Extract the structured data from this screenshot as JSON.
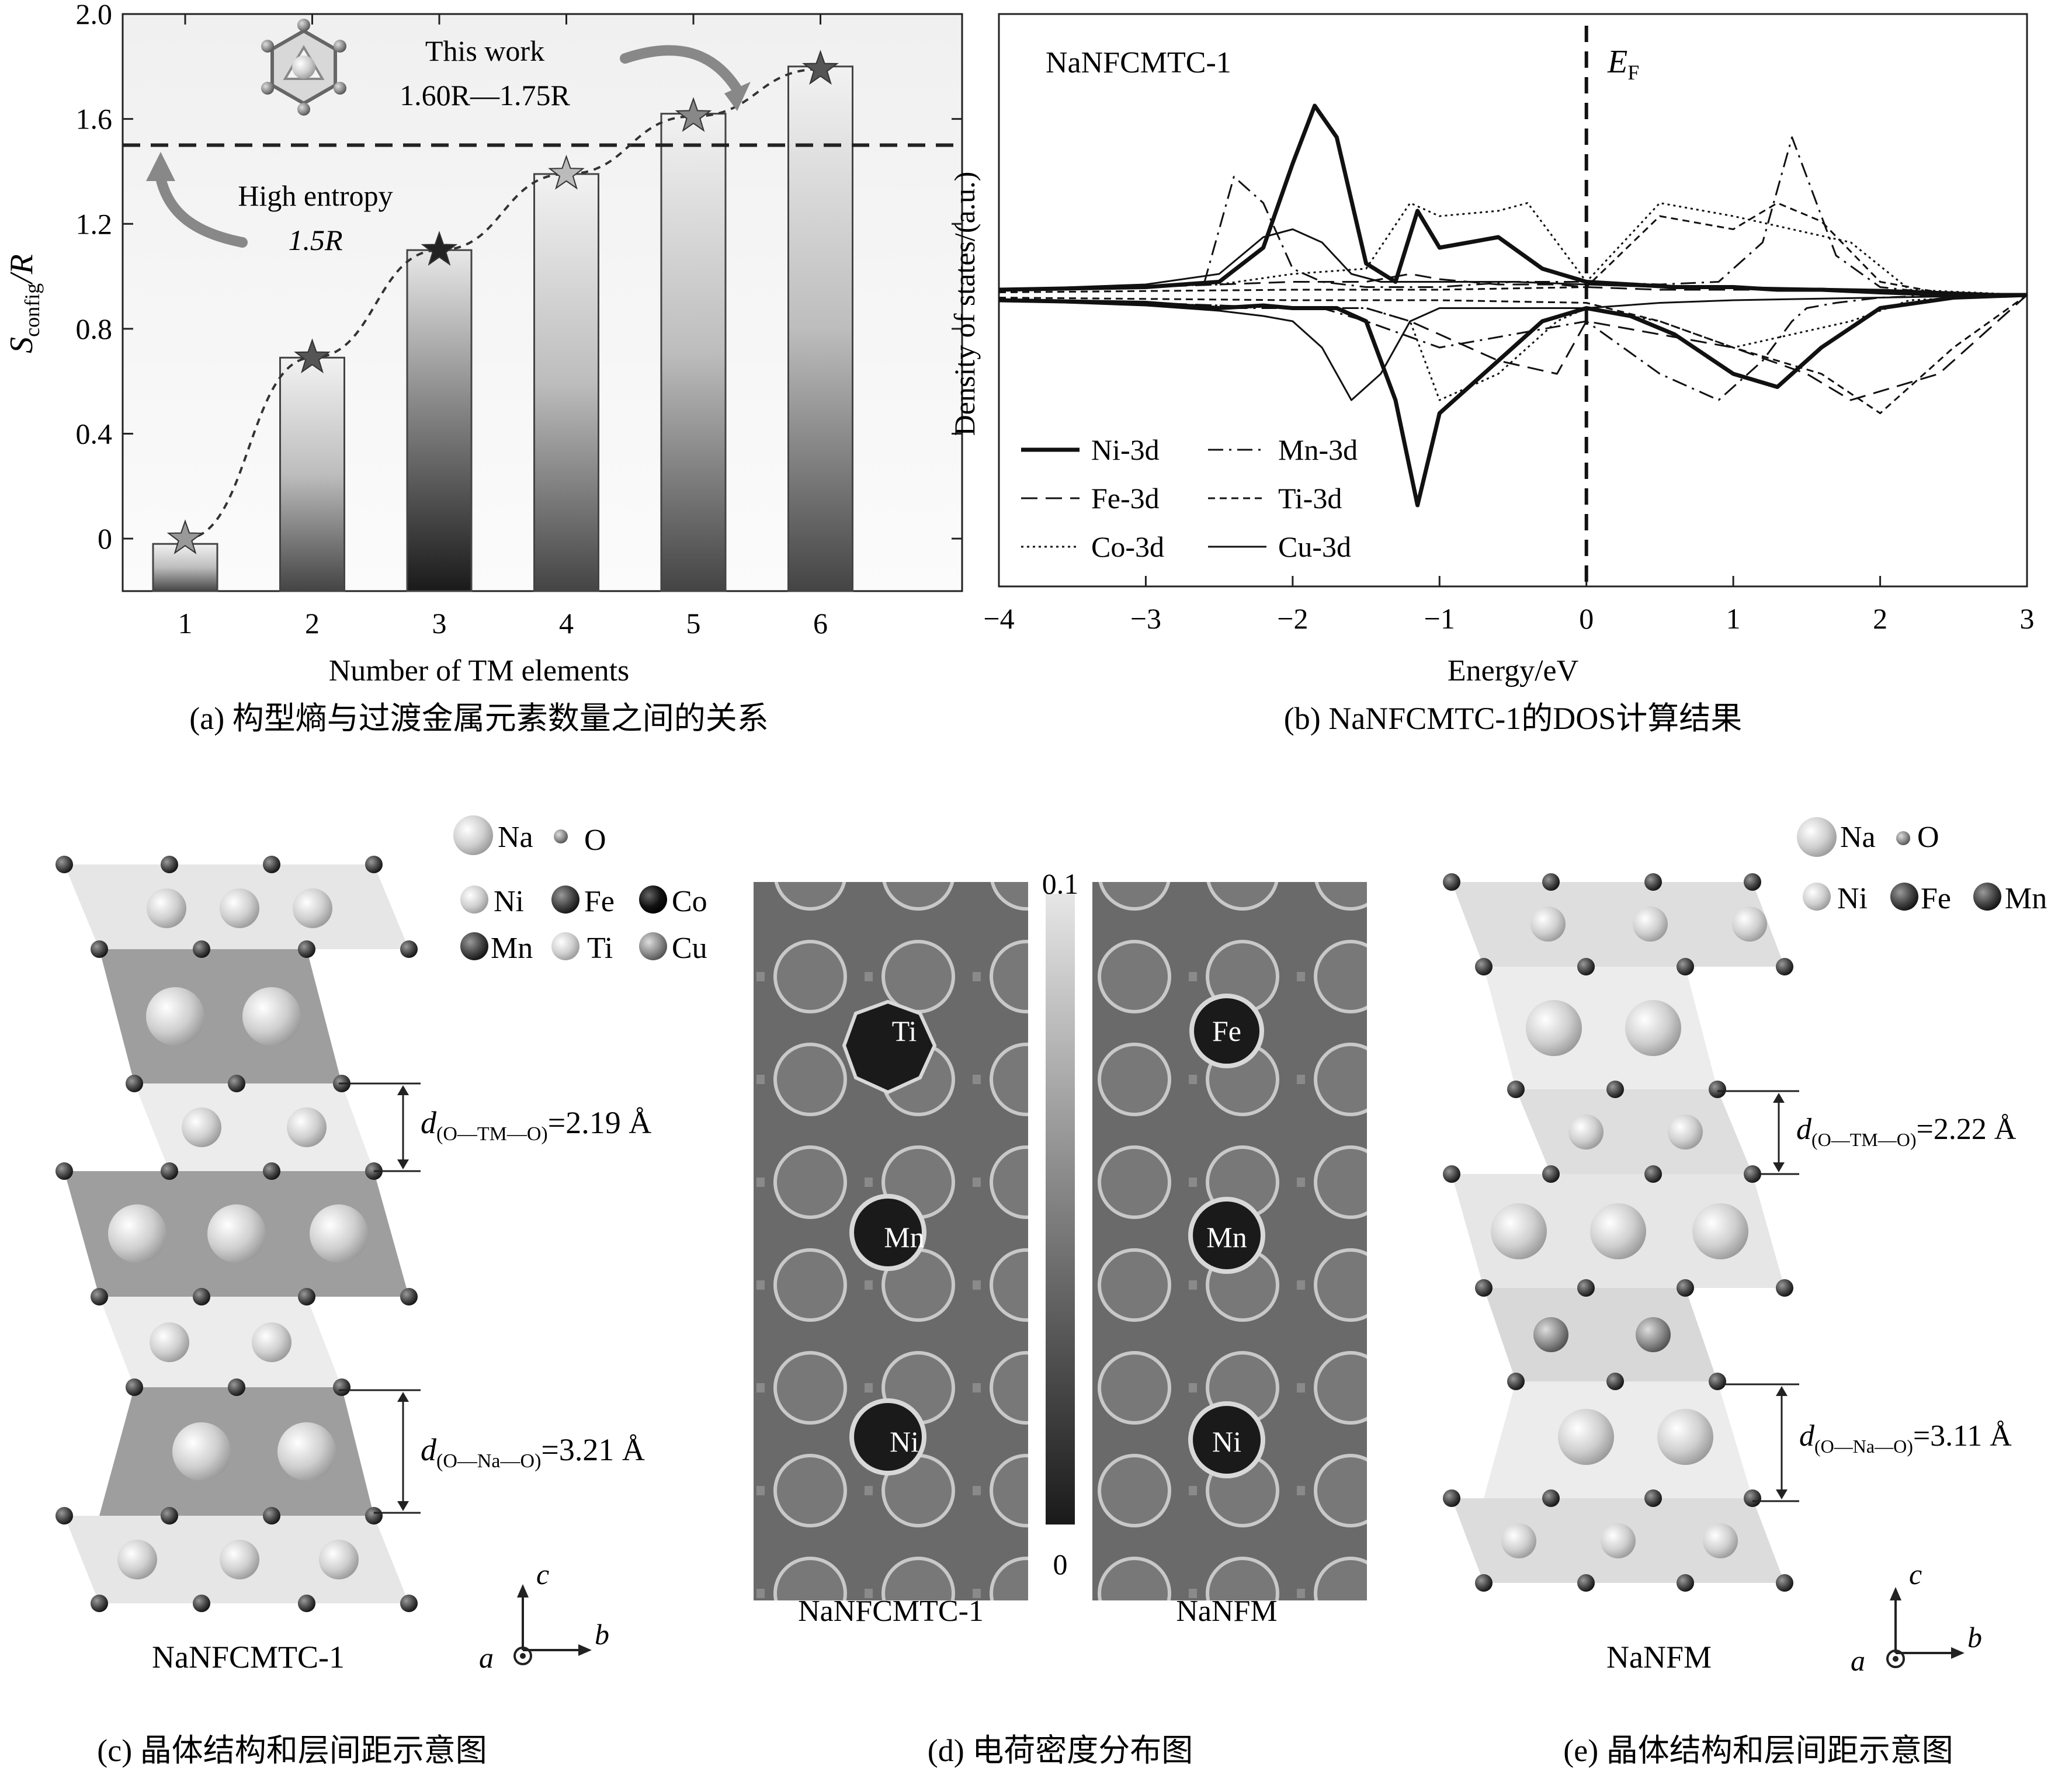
{
  "panel_a": {
    "caption": "(a) 构型熵与过渡金属元素数量之间的关系",
    "ylabel_main": "S",
    "ylabel_sub": "config",
    "ylabel_tail": "/R",
    "xlabel": "Number of TM elements",
    "this_work": "This work",
    "range_text": "1.60R—1.75R",
    "high_entropy": "High entropy",
    "he_value": "1.5R",
    "y_ticks": [
      "0",
      "0.4",
      "0.8",
      "1.2",
      "1.6",
      "2.0"
    ],
    "x_ticks": [
      "1",
      "2",
      "3",
      "4",
      "5",
      "6"
    ]
  },
  "panel_b": {
    "caption": "(b) NaNFCMTC-1的DOS计算结果",
    "sample": "NaNFCMTC-1",
    "ef_label": "E",
    "ef_sub": "F",
    "xlabel": "Energy/eV",
    "ylabel": "Density of states/(a.u.)",
    "x_ticks": [
      "−4",
      "−3",
      "−2",
      "−1",
      "0",
      "1",
      "2",
      "3"
    ],
    "legend": [
      "Ni-3d",
      "Mn-3d",
      "Fe-3d",
      "Ti-3d",
      "Co-3d",
      "Cu-3d"
    ]
  },
  "panel_c": {
    "caption": "(c) 晶体结构和层间距示意图",
    "name": "NaNFCMTC-1",
    "legend": [
      "Na",
      "O",
      "Ni",
      "Fe",
      "Co",
      "Mn",
      "Ti",
      "Cu"
    ],
    "d_tm_label": "d",
    "d_tm_sub": "(O—TM—O)",
    "d_tm_value": "=2.19 Å",
    "d_na_label": "d",
    "d_na_sub": "(O—Na—O)",
    "d_na_value": "=3.21 Å",
    "axis_c": "c",
    "axis_a": "a",
    "axis_b": "b"
  },
  "panel_d": {
    "caption": "(d) 电荷密度分布图",
    "left_name": "NaNFCMTC-1",
    "right_name": "NaNFM",
    "scale_max": "0.1",
    "scale_min": "0",
    "left_atoms": [
      "Ti",
      "Mn",
      "Ni"
    ],
    "right_atoms": [
      "Fe",
      "Mn",
      "Ni"
    ]
  },
  "panel_e": {
    "caption": "(e) 晶体结构和层间距示意图",
    "name": "NaNFM",
    "legend": [
      "Na",
      "O",
      "Ni",
      "Fe",
      "Mn"
    ],
    "d_tm_label": "d",
    "d_tm_sub": "(O—TM—O)",
    "d_tm_value": "=2.22 Å",
    "d_na_label": "d",
    "d_na_sub": "(O—Na—O)",
    "d_na_value": "=3.11 Å",
    "axis_c": "c",
    "axis_a": "a",
    "axis_b": "b"
  },
  "chart_data": [
    {
      "type": "bar",
      "title": "",
      "xlabel": "Number of TM elements",
      "ylabel": "S_config/R",
      "categories": [
        "1",
        "2",
        "3",
        "4",
        "5",
        "6"
      ],
      "values": [
        -0.02,
        0.69,
        1.1,
        1.39,
        1.62,
        1.8
      ],
      "ylim": [
        -0.2,
        2.0
      ],
      "reference_line": 1.5,
      "star_values": [
        0.0,
        0.69,
        1.1,
        1.39,
        1.61,
        1.79
      ]
    },
    {
      "type": "line",
      "title": "NaNFCMTC-1",
      "xlabel": "Energy/eV",
      "ylabel": "Density of states/(a.u.)",
      "xlim": [
        -4,
        3
      ],
      "ylim": [
        -1.0,
        1.0
      ],
      "fermi_level": 0,
      "series": [
        {
          "name": "Ni-3d",
          "style": "thick",
          "x": [
            -4,
            -3,
            -2.5,
            -2.2,
            -2.0,
            -1.85,
            -1.7,
            -1.5,
            -1.3,
            -1.15,
            -1.0,
            -0.6,
            -0.3,
            0,
            0.3,
            0.6,
            1.0,
            1.3,
            1.6,
            2.0,
            2.5,
            3
          ],
          "up": [
            0.02,
            0.03,
            0.05,
            0.18,
            0.5,
            0.72,
            0.6,
            0.12,
            0.05,
            0.32,
            0.18,
            0.22,
            0.1,
            0.05,
            0.04,
            0.03,
            0.03,
            0.02,
            0.02,
            0.01,
            0.0,
            0.0
          ],
          "down": [
            -0.02,
            -0.03,
            -0.05,
            -0.04,
            -0.05,
            -0.05,
            -0.05,
            -0.1,
            -0.4,
            -0.8,
            -0.45,
            -0.25,
            -0.1,
            -0.05,
            -0.08,
            -0.15,
            -0.3,
            -0.35,
            -0.2,
            -0.05,
            -0.01,
            0.0
          ]
        },
        {
          "name": "Mn-3d",
          "style": "dash-dot",
          "x": [
            -4,
            -3,
            -2.6,
            -2.4,
            -2.2,
            -2.0,
            -1.8,
            -1.5,
            -1.0,
            -0.5,
            0,
            0.5,
            0.9,
            1.2,
            1.4,
            1.5,
            1.7,
            2.0,
            2.5,
            3
          ],
          "up": [
            0.02,
            0.03,
            0.05,
            0.45,
            0.35,
            0.1,
            0.05,
            0.03,
            0.03,
            0.05,
            0.05,
            0.04,
            0.05,
            0.2,
            0.6,
            0.45,
            0.15,
            0.03,
            0.0,
            0.0
          ],
          "down": [
            -0.02,
            -0.03,
            -0.05,
            -0.05,
            -0.05,
            -0.05,
            -0.05,
            -0.1,
            -0.2,
            -0.15,
            -0.1,
            -0.3,
            -0.4,
            -0.25,
            -0.1,
            -0.05,
            -0.03,
            -0.01,
            0.0,
            0.0
          ]
        },
        {
          "name": "Fe-3d",
          "style": "long-dash",
          "x": [
            -4,
            -3,
            -2.5,
            -2.0,
            -1.5,
            -1.2,
            -1.0,
            -0.6,
            -0.2,
            0,
            0.5,
            1.0,
            1.5,
            1.8,
            2.1,
            2.4,
            2.8,
            3
          ],
          "up": [
            0.02,
            0.03,
            0.04,
            0.05,
            0.05,
            0.08,
            0.06,
            0.04,
            0.04,
            0.03,
            0.02,
            0.02,
            0.02,
            0.02,
            0.01,
            0.0,
            0.0,
            0.0
          ],
          "down": [
            -0.02,
            -0.03,
            -0.04,
            -0.05,
            -0.05,
            -0.1,
            -0.15,
            -0.25,
            -0.3,
            -0.1,
            -0.15,
            -0.2,
            -0.3,
            -0.4,
            -0.35,
            -0.3,
            -0.1,
            0.0
          ]
        },
        {
          "name": "Ti-3d",
          "style": "dash",
          "x": [
            -4,
            -2,
            -1,
            0,
            0.5,
            1.0,
            1.3,
            1.6,
            2.0,
            2.5,
            3
          ],
          "up": [
            0.01,
            0.02,
            0.02,
            0.03,
            0.3,
            0.25,
            0.35,
            0.28,
            0.05,
            0.0,
            0.0
          ],
          "down": [
            -0.01,
            -0.02,
            -0.02,
            -0.03,
            -0.1,
            -0.2,
            -0.25,
            -0.3,
            -0.45,
            -0.2,
            0.0
          ]
        },
        {
          "name": "Co-3d",
          "style": "dotted",
          "x": [
            -4,
            -2.5,
            -2.0,
            -1.5,
            -1.2,
            -1.0,
            -0.6,
            -0.4,
            -0.2,
            0,
            0.5,
            1.0,
            1.4,
            1.8,
            2.2,
            3
          ],
          "up": [
            0.02,
            0.04,
            0.08,
            0.1,
            0.35,
            0.3,
            0.32,
            0.35,
            0.2,
            0.05,
            0.35,
            0.3,
            0.25,
            0.2,
            0.02,
            0.0
          ],
          "down": [
            -0.02,
            -0.04,
            -0.05,
            -0.05,
            -0.1,
            -0.4,
            -0.3,
            -0.2,
            -0.1,
            -0.05,
            -0.1,
            -0.2,
            -0.15,
            -0.1,
            -0.02,
            0.0
          ]
        },
        {
          "name": "Cu-3d",
          "style": "thin",
          "x": [
            -4,
            -3,
            -2.5,
            -2.2,
            -2.0,
            -1.8,
            -1.6,
            -1.4,
            -1.2,
            -1.0,
            -0.5,
            0,
            0.5,
            1.0,
            2.0,
            3
          ],
          "up": [
            0.02,
            0.04,
            0.08,
            0.22,
            0.25,
            0.2,
            0.08,
            0.05,
            0.05,
            0.05,
            0.05,
            0.04,
            0.03,
            0.03,
            0.02,
            0.0
          ],
          "down": [
            -0.02,
            -0.04,
            -0.06,
            -0.08,
            -0.1,
            -0.2,
            -0.4,
            -0.3,
            -0.1,
            -0.05,
            -0.05,
            -0.05,
            -0.03,
            -0.02,
            -0.01,
            0.0
          ]
        }
      ]
    }
  ]
}
